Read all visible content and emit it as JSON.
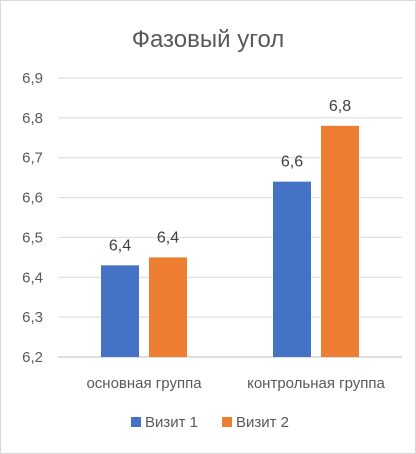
{
  "chart_data": {
    "type": "bar",
    "title": "Фазовый угол",
    "categories": [
      "основная группа",
      "контрольная группа"
    ],
    "series": [
      {
        "name": "Визит 1",
        "color": "#4472C4",
        "values": [
          6.43,
          6.64
        ],
        "labels": [
          "6,4",
          "6,6"
        ]
      },
      {
        "name": "Визит 2",
        "color": "#ED7D31",
        "values": [
          6.45,
          6.78
        ],
        "labels": [
          "6,4",
          "6,8"
        ]
      }
    ],
    "ylim": [
      6.2,
      6.9
    ],
    "yticks": [
      6.2,
      6.3,
      6.4,
      6.5,
      6.6,
      6.7,
      6.8,
      6.9
    ],
    "ytick_labels": [
      "6,2",
      "6,3",
      "6,4",
      "6,5",
      "6,6",
      "6,7",
      "6,8",
      "6,9"
    ],
    "grid": true,
    "legend_position": "bottom"
  }
}
